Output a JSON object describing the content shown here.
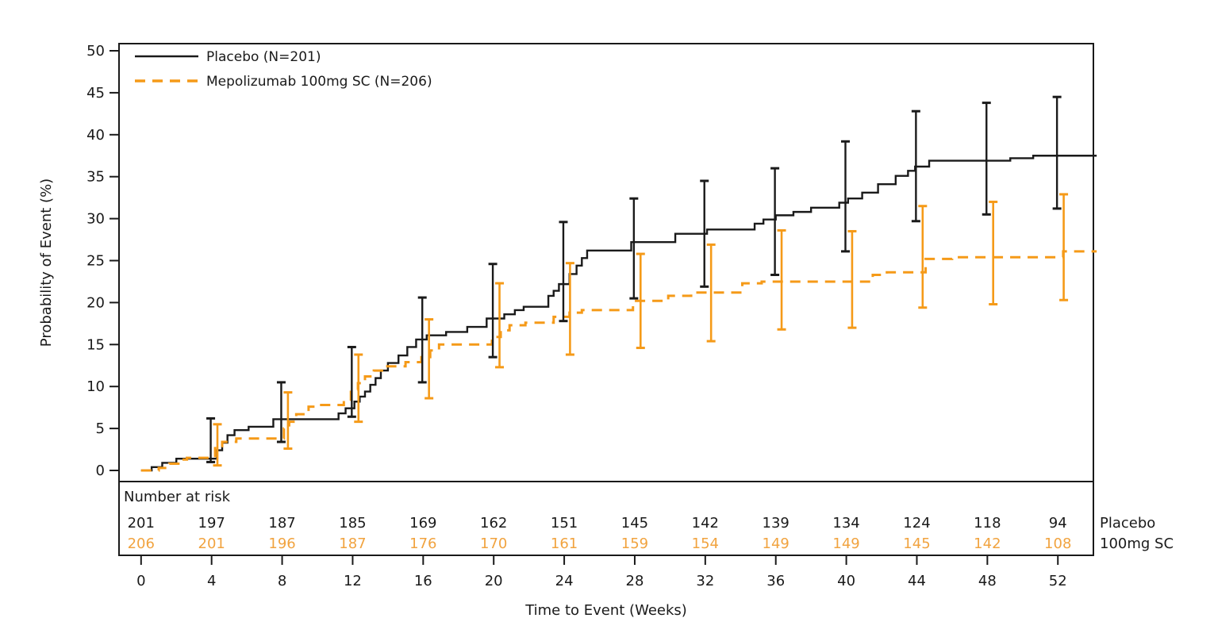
{
  "chart_data": {
    "type": "line",
    "subtype": "kaplan-meier-step-with-ci-bars",
    "title": "",
    "xlabel": "Time to Event (Weeks)",
    "ylabel": "Probability of Event (%)",
    "xlim": [
      0,
      52
    ],
    "ylim": [
      0,
      50
    ],
    "x_ticks": [
      0,
      4,
      8,
      12,
      16,
      20,
      24,
      28,
      32,
      36,
      40,
      44,
      48,
      52
    ],
    "y_ticks": [
      0,
      5,
      10,
      15,
      20,
      25,
      30,
      35,
      40,
      45,
      50
    ],
    "grid": false,
    "legend_position": "top-left-inside",
    "colors": {
      "placebo": "#1a1a1a",
      "mepolizumab": "#f59a18",
      "risk_row_mepolizumab": "#f1a33f",
      "axis": "#1a1a1a",
      "text": "#1a1a1a",
      "background": "#ffffff"
    },
    "series": [
      {
        "name": "Placebo (N=201)",
        "short_label": "Placebo",
        "style": "solid",
        "color_key": "placebo",
        "ci_offset_weeks": -0.05,
        "steps": [
          [
            0,
            0
          ],
          [
            0.6,
            0.4
          ],
          [
            1.2,
            0.9
          ],
          [
            2.0,
            1.4
          ],
          [
            4.3,
            2.4
          ],
          [
            4.6,
            3.3
          ],
          [
            4.9,
            4.2
          ],
          [
            5.3,
            4.8
          ],
          [
            6.1,
            5.2
          ],
          [
            7.5,
            6.1
          ],
          [
            11.2,
            6.8
          ],
          [
            11.6,
            7.4
          ],
          [
            12.1,
            8.2
          ],
          [
            12.4,
            8.8
          ],
          [
            12.7,
            9.4
          ],
          [
            13.0,
            10.2
          ],
          [
            13.3,
            11.0
          ],
          [
            13.6,
            11.9
          ],
          [
            14.0,
            12.8
          ],
          [
            14.6,
            13.7
          ],
          [
            15.1,
            14.7
          ],
          [
            15.6,
            15.6
          ],
          [
            16.2,
            16.1
          ],
          [
            17.3,
            16.5
          ],
          [
            18.5,
            17.1
          ],
          [
            19.6,
            18.1
          ],
          [
            20.6,
            18.6
          ],
          [
            21.2,
            19.1
          ],
          [
            21.7,
            19.5
          ],
          [
            23.1,
            20.8
          ],
          [
            23.4,
            21.4
          ],
          [
            23.7,
            22.2
          ],
          [
            24.3,
            23.4
          ],
          [
            24.7,
            24.4
          ],
          [
            25.0,
            25.3
          ],
          [
            25.3,
            26.2
          ],
          [
            27.8,
            27.2
          ],
          [
            30.3,
            28.2
          ],
          [
            32.1,
            28.7
          ],
          [
            34.8,
            29.4
          ],
          [
            35.3,
            29.9
          ],
          [
            36.0,
            30.4
          ],
          [
            37.0,
            30.8
          ],
          [
            38.0,
            31.3
          ],
          [
            39.6,
            31.9
          ],
          [
            40.1,
            32.4
          ],
          [
            40.9,
            33.1
          ],
          [
            41.8,
            34.1
          ],
          [
            42.8,
            35.1
          ],
          [
            43.5,
            35.7
          ],
          [
            43.9,
            36.2
          ],
          [
            44.7,
            36.9
          ],
          [
            49.3,
            37.2
          ],
          [
            50.6,
            37.5
          ],
          [
            54.2,
            37.5
          ]
        ],
        "ci": [
          [
            4,
            1.0,
            6.2
          ],
          [
            8,
            3.4,
            10.5
          ],
          [
            12,
            6.4,
            14.7
          ],
          [
            16,
            10.5,
            20.6
          ],
          [
            20,
            13.5,
            24.6
          ],
          [
            24,
            17.8,
            29.6
          ],
          [
            28,
            20.5,
            32.4
          ],
          [
            32,
            21.9,
            34.5
          ],
          [
            36,
            23.3,
            36.0
          ],
          [
            40,
            26.1,
            39.2
          ],
          [
            44,
            29.7,
            42.8
          ],
          [
            48,
            30.5,
            43.8
          ],
          [
            52,
            31.2,
            44.5
          ]
        ]
      },
      {
        "name": "Mepolizumab 100mg SC (N=206)",
        "short_label": "100mg SC",
        "style": "dashed",
        "color_key": "mepolizumab",
        "ci_offset_weeks": 0.33,
        "steps": [
          [
            0,
            0
          ],
          [
            1.0,
            0.3
          ],
          [
            1.6,
            0.8
          ],
          [
            2.2,
            1.3
          ],
          [
            2.6,
            1.5
          ],
          [
            4.2,
            2.9
          ],
          [
            4.6,
            3.4
          ],
          [
            5.4,
            3.8
          ],
          [
            8.1,
            5.0
          ],
          [
            8.4,
            5.8
          ],
          [
            8.8,
            6.7
          ],
          [
            9.5,
            7.6
          ],
          [
            9.9,
            7.8
          ],
          [
            11.5,
            8.3
          ],
          [
            11.9,
            9.6
          ],
          [
            12.3,
            10.4
          ],
          [
            12.7,
            11.2
          ],
          [
            13.2,
            11.9
          ],
          [
            13.8,
            12.4
          ],
          [
            15.0,
            12.9
          ],
          [
            15.9,
            13.5
          ],
          [
            16.4,
            14.3
          ],
          [
            16.9,
            15.0
          ],
          [
            19.9,
            15.9
          ],
          [
            20.4,
            16.7
          ],
          [
            20.9,
            17.3
          ],
          [
            21.8,
            17.6
          ],
          [
            23.4,
            18.3
          ],
          [
            24.3,
            18.8
          ],
          [
            25.0,
            19.1
          ],
          [
            27.9,
            20.2
          ],
          [
            29.9,
            20.8
          ],
          [
            31.2,
            21.2
          ],
          [
            34.1,
            22.3
          ],
          [
            35.2,
            22.5
          ],
          [
            41.5,
            23.3
          ],
          [
            42.3,
            23.6
          ],
          [
            44.5,
            25.2
          ],
          [
            46.0,
            25.4
          ],
          [
            52.3,
            26.1
          ],
          [
            54.2,
            26.1
          ]
        ],
        "ci": [
          [
            4,
            0.6,
            5.5
          ],
          [
            8,
            2.6,
            9.3
          ],
          [
            12,
            5.8,
            13.8
          ],
          [
            16,
            8.6,
            18.0
          ],
          [
            20,
            12.3,
            22.3
          ],
          [
            24,
            13.8,
            24.7
          ],
          [
            28,
            14.6,
            25.8
          ],
          [
            32,
            15.4,
            26.9
          ],
          [
            36,
            16.8,
            28.6
          ],
          [
            40,
            17.0,
            28.5
          ],
          [
            44,
            19.4,
            31.5
          ],
          [
            48,
            19.8,
            32.0
          ],
          [
            52,
            20.3,
            32.9
          ]
        ]
      }
    ],
    "number_at_risk": {
      "heading": "Number at risk",
      "weeks": [
        0,
        4,
        8,
        12,
        16,
        20,
        24,
        28,
        32,
        36,
        40,
        44,
        48,
        52
      ],
      "rows": [
        {
          "label": "Placebo",
          "color_key": "placebo",
          "values": [
            201,
            197,
            187,
            185,
            169,
            162,
            151,
            145,
            142,
            139,
            134,
            124,
            118,
            94
          ]
        },
        {
          "label": "100mg SC",
          "color_key": "risk_row_mepolizumab",
          "values": [
            206,
            201,
            196,
            187,
            176,
            170,
            161,
            159,
            154,
            149,
            149,
            145,
            142,
            108
          ]
        }
      ]
    }
  }
}
